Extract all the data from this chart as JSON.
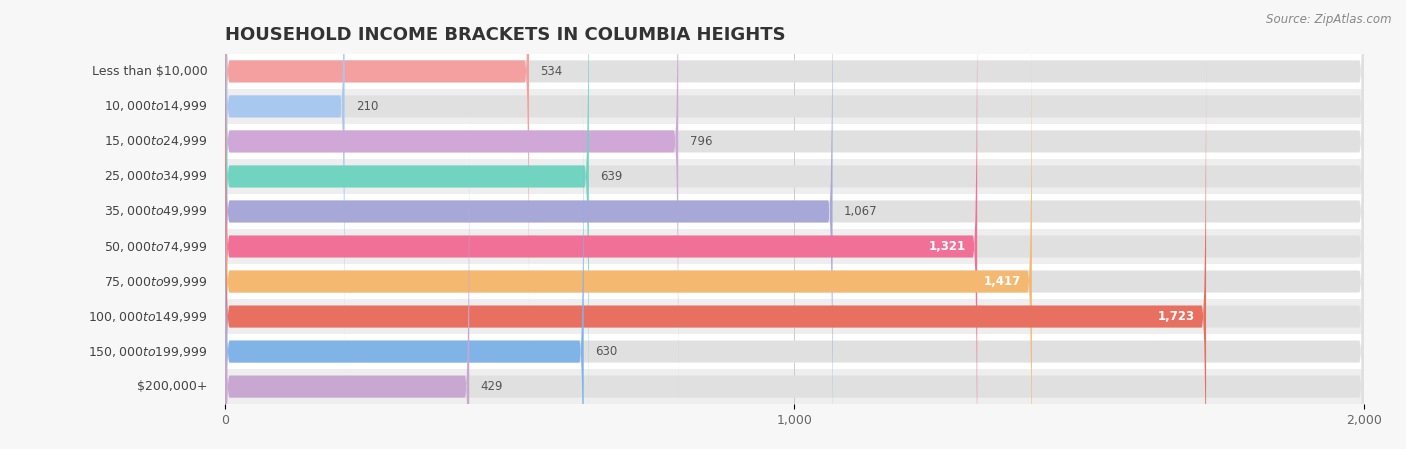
{
  "title": "HOUSEHOLD INCOME BRACKETS IN COLUMBIA HEIGHTS",
  "source": "Source: ZipAtlas.com",
  "categories": [
    "Less than $10,000",
    "$10,000 to $14,999",
    "$15,000 to $24,999",
    "$25,000 to $34,999",
    "$35,000 to $49,999",
    "$50,000 to $74,999",
    "$75,000 to $99,999",
    "$100,000 to $149,999",
    "$150,000 to $199,999",
    "$200,000+"
  ],
  "values": [
    534,
    210,
    796,
    639,
    1067,
    1321,
    1417,
    1723,
    630,
    429
  ],
  "bar_colors": [
    "#F4A0A0",
    "#A8C8F0",
    "#D0A8D8",
    "#70D4C0",
    "#A8A8D8",
    "#F07098",
    "#F4B870",
    "#E87060",
    "#80B4E8",
    "#C8A8D0"
  ],
  "background_color": "#f7f7f7",
  "row_colors": [
    "#ffffff",
    "#eeeeee"
  ],
  "bar_bg_color": "#e0e0e0",
  "xlim": [
    0,
    2000
  ],
  "xticks": [
    0,
    1000,
    2000
  ],
  "title_fontsize": 13,
  "label_fontsize": 9,
  "value_fontsize": 8.5,
  "source_fontsize": 8.5,
  "value_threshold": 1100
}
